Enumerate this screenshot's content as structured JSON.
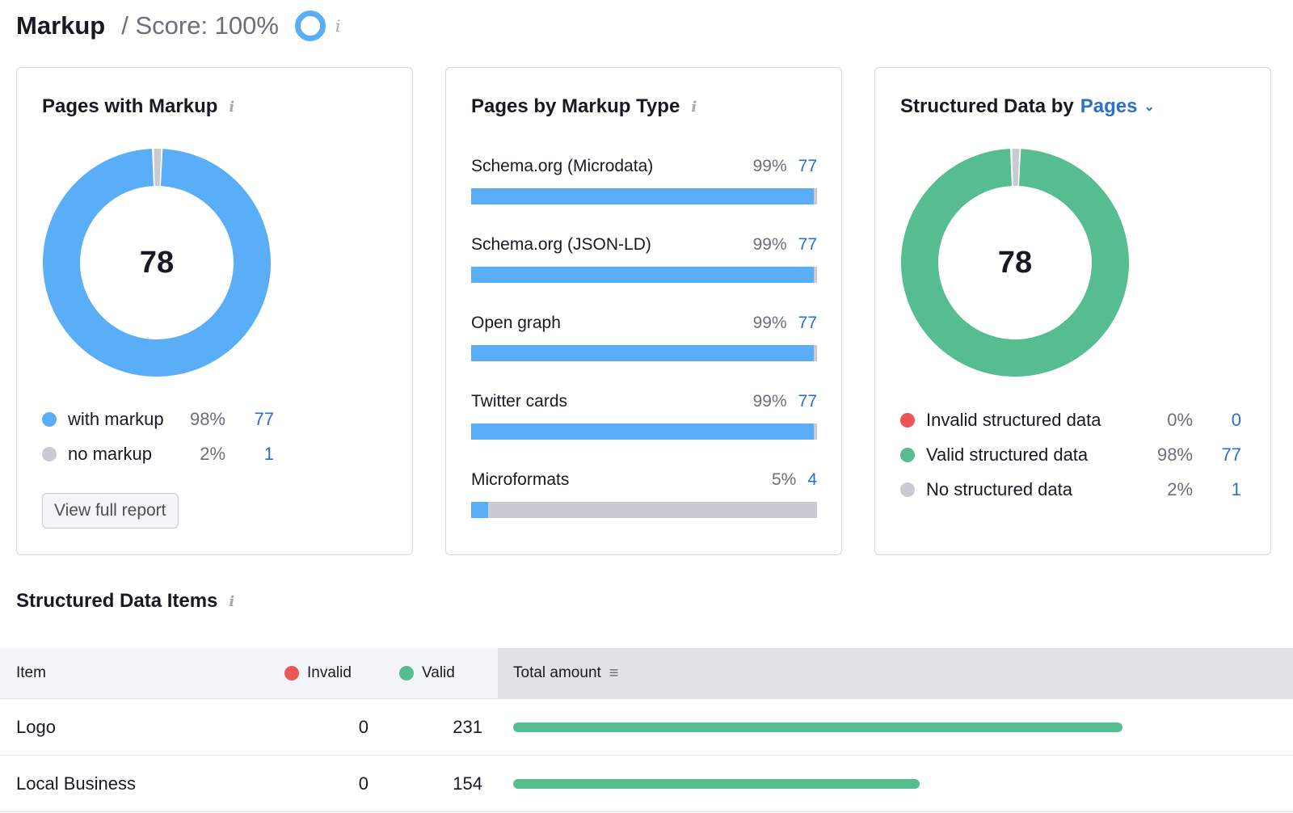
{
  "header": {
    "title": "Markup",
    "score": "/ Score: 100%",
    "info": "i"
  },
  "colors": {
    "blue": "#5aaef7",
    "green": "#55bd8f",
    "red": "#eb5757",
    "gray": "#c8cbd1",
    "link": "#2a6fce"
  },
  "pages_with_markup": {
    "title": "Pages with Markup",
    "total": "78",
    "legend": [
      {
        "label": "with markup",
        "pct": "98%",
        "count": "77",
        "color": "#5aaef7",
        "value": 77
      },
      {
        "label": "no markup",
        "pct": "2%",
        "count": "1",
        "color": "#c8cbd1",
        "value": 1
      }
    ],
    "button": "View full report"
  },
  "pages_by_type": {
    "title": "Pages by Markup Type",
    "rows": [
      {
        "label": "Schema.org (Microdata)",
        "pct": "99%",
        "count": "77",
        "fill": 99
      },
      {
        "label": "Schema.org (JSON-LD)",
        "pct": "99%",
        "count": "77",
        "fill": 99
      },
      {
        "label": "Open graph",
        "pct": "99%",
        "count": "77",
        "fill": 99
      },
      {
        "label": "Twitter cards",
        "pct": "99%",
        "count": "77",
        "fill": 99
      },
      {
        "label": "Microformats",
        "pct": "5%",
        "count": "4",
        "fill": 5
      }
    ]
  },
  "structured_by": {
    "title": "Structured Data by",
    "dropdown": "Pages",
    "total": "78",
    "legend": [
      {
        "label": "Invalid structured data",
        "pct": "0%",
        "count": "0",
        "color": "#eb5757",
        "value": 0
      },
      {
        "label": "Valid structured data",
        "pct": "98%",
        "count": "77",
        "color": "#55bd8f",
        "value": 77
      },
      {
        "label": "No structured data",
        "pct": "2%",
        "count": "1",
        "color": "#c8cbd1",
        "value": 1
      }
    ]
  },
  "items": {
    "title": "Structured Data Items",
    "columns": {
      "item": "Item",
      "invalid": "Invalid",
      "valid": "Valid",
      "total": "Total amount"
    },
    "rows": [
      {
        "item": "Logo",
        "invalid": "0",
        "valid": "231",
        "total": 231
      },
      {
        "item": "Local Business",
        "invalid": "0",
        "valid": "154",
        "total": 154
      }
    ]
  }
}
